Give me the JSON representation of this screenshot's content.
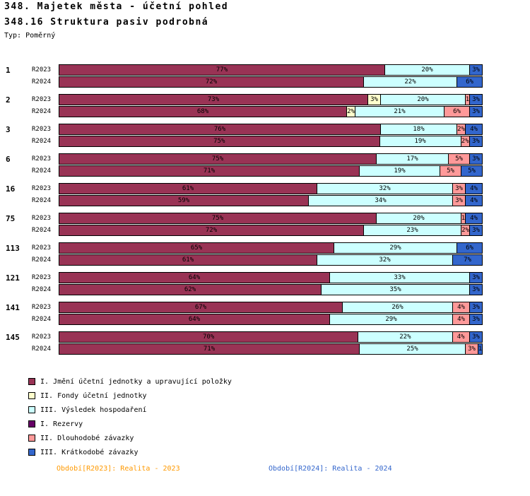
{
  "header": {
    "title": "348. Majetek města - účetní pohled",
    "subtitle": "348.16 Struktura pasiv podrobná",
    "type_label": "Typ: Poměrný"
  },
  "footer": {
    "left": "Období[R2023]: Realita - 2023",
    "right": "Období[R2024]: Realita - 2024",
    "left_color": "#FF9900",
    "right_color": "#3366CC"
  },
  "chart_data": {
    "type": "bar",
    "orientation": "horizontal",
    "stacked": true,
    "unit": "percent",
    "xlim": [
      0,
      100
    ],
    "grid": false,
    "legend_position": "bottom-left",
    "legend": [
      {
        "key": "jmeni",
        "label": "I. Jmění účetní jednotky a upravující položky",
        "color": "#993355"
      },
      {
        "key": "fondy",
        "label": "II. Fondy účetní jednotky",
        "color": "#FFFFCC"
      },
      {
        "key": "vysledek",
        "label": "III. Výsledek hospodaření",
        "color": "#CCFFFF"
      },
      {
        "key": "rezervy",
        "label": "I. Rezervy",
        "color": "#660066"
      },
      {
        "key": "dlouhodobe",
        "label": "II. Dlouhodobé závazky",
        "color": "#FF9999"
      },
      {
        "key": "kratkodobe",
        "label": "III. Krátkodobé závazky",
        "color": "#3366CC"
      }
    ],
    "groups": [
      {
        "id": "1",
        "rows": [
          {
            "label": "R2023",
            "segments": [
              {
                "key": "jmeni",
                "value": 77,
                "label": "77%"
              },
              {
                "key": "vysledek",
                "value": 20,
                "label": "20%"
              },
              {
                "key": "kratkodobe",
                "value": 3,
                "label": "3%"
              }
            ]
          },
          {
            "label": "R2024",
            "segments": [
              {
                "key": "jmeni",
                "value": 72,
                "label": "72%"
              },
              {
                "key": "vysledek",
                "value": 22,
                "label": "22%"
              },
              {
                "key": "kratkodobe",
                "value": 6,
                "label": "6%"
              }
            ]
          }
        ]
      },
      {
        "id": "2",
        "rows": [
          {
            "label": "R2023",
            "segments": [
              {
                "key": "jmeni",
                "value": 73,
                "label": "73%"
              },
              {
                "key": "fondy",
                "value": 3,
                "label": "3%"
              },
              {
                "key": "vysledek",
                "value": 20,
                "label": "20%"
              },
              {
                "key": "dlouhodobe",
                "value": 1,
                "label": "1"
              },
              {
                "key": "kratkodobe",
                "value": 3,
                "label": "3%"
              }
            ]
          },
          {
            "label": "R2024",
            "segments": [
              {
                "key": "jmeni",
                "value": 68,
                "label": "68%"
              },
              {
                "key": "fondy",
                "value": 2,
                "label": "2%"
              },
              {
                "key": "vysledek",
                "value": 21,
                "label": "21%"
              },
              {
                "key": "dlouhodobe",
                "value": 6,
                "label": "6%"
              },
              {
                "key": "kratkodobe",
                "value": 3,
                "label": "3%"
              }
            ]
          }
        ]
      },
      {
        "id": "3",
        "rows": [
          {
            "label": "R2023",
            "segments": [
              {
                "key": "jmeni",
                "value": 76,
                "label": "76%"
              },
              {
                "key": "vysledek",
                "value": 18,
                "label": "18%"
              },
              {
                "key": "dlouhodobe",
                "value": 2,
                "label": "2%"
              },
              {
                "key": "kratkodobe",
                "value": 4,
                "label": "4%"
              }
            ]
          },
          {
            "label": "R2024",
            "segments": [
              {
                "key": "jmeni",
                "value": 75,
                "label": "75%"
              },
              {
                "key": "vysledek",
                "value": 19,
                "label": "19%"
              },
              {
                "key": "dlouhodobe",
                "value": 2,
                "label": "2%"
              },
              {
                "key": "kratkodobe",
                "value": 3,
                "label": "3%"
              }
            ]
          }
        ]
      },
      {
        "id": "6",
        "rows": [
          {
            "label": "R2023",
            "segments": [
              {
                "key": "jmeni",
                "value": 75,
                "label": "75%"
              },
              {
                "key": "vysledek",
                "value": 17,
                "label": "17%"
              },
              {
                "key": "dlouhodobe",
                "value": 5,
                "label": "5%"
              },
              {
                "key": "kratkodobe",
                "value": 3,
                "label": "3%"
              }
            ]
          },
          {
            "label": "R2024",
            "segments": [
              {
                "key": "jmeni",
                "value": 71,
                "label": "71%"
              },
              {
                "key": "vysledek",
                "value": 19,
                "label": "19%"
              },
              {
                "key": "dlouhodobe",
                "value": 5,
                "label": "5%"
              },
              {
                "key": "kratkodobe",
                "value": 5,
                "label": "5%"
              }
            ]
          }
        ]
      },
      {
        "id": "16",
        "rows": [
          {
            "label": "R2023",
            "segments": [
              {
                "key": "jmeni",
                "value": 61,
                "label": "61%"
              },
              {
                "key": "vysledek",
                "value": 32,
                "label": "32%"
              },
              {
                "key": "dlouhodobe",
                "value": 3,
                "label": "3%"
              },
              {
                "key": "kratkodobe",
                "value": 4,
                "label": "4%"
              }
            ]
          },
          {
            "label": "R2024",
            "segments": [
              {
                "key": "jmeni",
                "value": 59,
                "label": "59%"
              },
              {
                "key": "vysledek",
                "value": 34,
                "label": "34%"
              },
              {
                "key": "dlouhodobe",
                "value": 3,
                "label": "3%"
              },
              {
                "key": "kratkodobe",
                "value": 4,
                "label": "4%"
              }
            ]
          }
        ]
      },
      {
        "id": "75",
        "rows": [
          {
            "label": "R2023",
            "segments": [
              {
                "key": "jmeni",
                "value": 75,
                "label": "75%"
              },
              {
                "key": "vysledek",
                "value": 20,
                "label": "20%"
              },
              {
                "key": "dlouhodobe",
                "value": 1,
                "label": "1"
              },
              {
                "key": "kratkodobe",
                "value": 4,
                "label": "4%"
              }
            ]
          },
          {
            "label": "R2024",
            "segments": [
              {
                "key": "jmeni",
                "value": 72,
                "label": "72%"
              },
              {
                "key": "vysledek",
                "value": 23,
                "label": "23%"
              },
              {
                "key": "dlouhodobe",
                "value": 2,
                "label": "2%"
              },
              {
                "key": "kratkodobe",
                "value": 3,
                "label": "3%"
              }
            ]
          }
        ]
      },
      {
        "id": "113",
        "rows": [
          {
            "label": "R2023",
            "segments": [
              {
                "key": "jmeni",
                "value": 65,
                "label": "65%"
              },
              {
                "key": "vysledek",
                "value": 29,
                "label": "29%"
              },
              {
                "key": "kratkodobe",
                "value": 6,
                "label": "6%"
              }
            ]
          },
          {
            "label": "R2024",
            "segments": [
              {
                "key": "jmeni",
                "value": 61,
                "label": "61%"
              },
              {
                "key": "vysledek",
                "value": 32,
                "label": "32%"
              },
              {
                "key": "kratkodobe",
                "value": 7,
                "label": "7%"
              }
            ]
          }
        ]
      },
      {
        "id": "121",
        "rows": [
          {
            "label": "R2023",
            "segments": [
              {
                "key": "jmeni",
                "value": 64,
                "label": "64%"
              },
              {
                "key": "vysledek",
                "value": 33,
                "label": "33%"
              },
              {
                "key": "kratkodobe",
                "value": 3,
                "label": "3%"
              }
            ]
          },
          {
            "label": "R2024",
            "segments": [
              {
                "key": "jmeni",
                "value": 62,
                "label": "62%"
              },
              {
                "key": "vysledek",
                "value": 35,
                "label": "35%"
              },
              {
                "key": "kratkodobe",
                "value": 3,
                "label": "3%"
              }
            ]
          }
        ]
      },
      {
        "id": "141",
        "rows": [
          {
            "label": "R2023",
            "segments": [
              {
                "key": "jmeni",
                "value": 67,
                "label": "67%"
              },
              {
                "key": "vysledek",
                "value": 26,
                "label": "26%"
              },
              {
                "key": "dlouhodobe",
                "value": 4,
                "label": "4%"
              },
              {
                "key": "kratkodobe",
                "value": 3,
                "label": "3%"
              }
            ]
          },
          {
            "label": "R2024",
            "segments": [
              {
                "key": "jmeni",
                "value": 64,
                "label": "64%"
              },
              {
                "key": "vysledek",
                "value": 29,
                "label": "29%"
              },
              {
                "key": "dlouhodobe",
                "value": 4,
                "label": "4%"
              },
              {
                "key": "kratkodobe",
                "value": 3,
                "label": "3%"
              }
            ]
          }
        ]
      },
      {
        "id": "145",
        "rows": [
          {
            "label": "R2023",
            "segments": [
              {
                "key": "jmeni",
                "value": 70,
                "label": "70%"
              },
              {
                "key": "vysledek",
                "value": 22,
                "label": "22%"
              },
              {
                "key": "dlouhodobe",
                "value": 4,
                "label": "4%"
              },
              {
                "key": "kratkodobe",
                "value": 3,
                "label": "3%"
              }
            ]
          },
          {
            "label": "R2024",
            "segments": [
              {
                "key": "jmeni",
                "value": 71,
                "label": "71%"
              },
              {
                "key": "vysledek",
                "value": 25,
                "label": "25%"
              },
              {
                "key": "dlouhodobe",
                "value": 3,
                "label": "3%"
              },
              {
                "key": "kratkodobe",
                "value": 1,
                "label": "1"
              }
            ]
          }
        ]
      }
    ]
  }
}
